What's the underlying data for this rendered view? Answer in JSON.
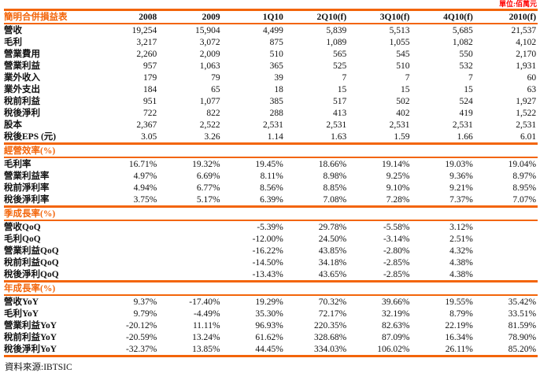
{
  "unit_label": "單位:佰萬元",
  "source_note": "資料來源:IBTSIC",
  "colors": {
    "accent_orange": "#F3650A",
    "unit_red": "#FF0000",
    "text": "#111111"
  },
  "table": {
    "title": "簡明合併損益表",
    "columns": [
      "2008",
      "2009",
      "1Q10",
      "2Q10(f)",
      "3Q10(f)",
      "4Q10(f)",
      "2010(f)"
    ],
    "sections": [
      {
        "rows": [
          {
            "label": "營收",
            "values": [
              "19,254",
              "15,904",
              "4,499",
              "5,839",
              "5,513",
              "5,685",
              "21,537"
            ]
          },
          {
            "label": "毛利",
            "values": [
              "3,217",
              "3,072",
              "875",
              "1,089",
              "1,055",
              "1,082",
              "4,102"
            ]
          },
          {
            "label": "營業費用",
            "values": [
              "2,260",
              "2,009",
              "510",
              "565",
              "545",
              "550",
              "2,170"
            ]
          },
          {
            "label": "營業利益",
            "values": [
              "957",
              "1,063",
              "365",
              "525",
              "510",
              "532",
              "1,931"
            ]
          },
          {
            "label": "業外收入",
            "values": [
              "179",
              "79",
              "39",
              "7",
              "7",
              "7",
              "60"
            ]
          },
          {
            "label": "業外支出",
            "values": [
              "184",
              "65",
              "18",
              "15",
              "15",
              "15",
              "63"
            ]
          },
          {
            "label": "稅前利益",
            "values": [
              "951",
              "1,077",
              "385",
              "517",
              "502",
              "524",
              "1,927"
            ]
          },
          {
            "label": "稅後淨利",
            "values": [
              "722",
              "822",
              "288",
              "413",
              "402",
              "419",
              "1,522"
            ]
          },
          {
            "label": "股本",
            "values": [
              "2,367",
              "2,522",
              "2,531",
              "2,531",
              "2,531",
              "2,531",
              "2,531"
            ]
          },
          {
            "label": "稅後EPS (元)",
            "values": [
              "3.05",
              "3.26",
              "1.14",
              "1.63",
              "1.59",
              "1.66",
              "6.01"
            ]
          }
        ]
      },
      {
        "header": "經營效率(%)",
        "rows": [
          {
            "label": "毛利率",
            "values": [
              "16.71%",
              "19.32%",
              "19.45%",
              "18.66%",
              "19.14%",
              "19.03%",
              "19.04%"
            ]
          },
          {
            "label": "營業利益率",
            "values": [
              "4.97%",
              "6.69%",
              "8.11%",
              "8.98%",
              "9.25%",
              "9.36%",
              "8.97%"
            ]
          },
          {
            "label": "稅前淨利率",
            "values": [
              "4.94%",
              "6.77%",
              "8.56%",
              "8.85%",
              "9.10%",
              "9.21%",
              "8.95%"
            ]
          },
          {
            "label": "稅後淨利率",
            "values": [
              "3.75%",
              "5.17%",
              "6.39%",
              "7.08%",
              "7.28%",
              "7.37%",
              "7.07%"
            ]
          }
        ]
      },
      {
        "header": "季成長率(%)",
        "rows": [
          {
            "label": "營收QoQ",
            "values": [
              "",
              "",
              "-5.39%",
              "29.78%",
              "-5.58%",
              "3.12%",
              ""
            ]
          },
          {
            "label": "毛利QoQ",
            "values": [
              "",
              "",
              "-12.00%",
              "24.50%",
              "-3.14%",
              "2.51%",
              ""
            ]
          },
          {
            "label": "營業利益QoQ",
            "values": [
              "",
              "",
              "-16.22%",
              "43.85%",
              "-2.80%",
              "4.32%",
              ""
            ]
          },
          {
            "label": "稅前利益QoQ",
            "values": [
              "",
              "",
              "-14.50%",
              "34.18%",
              "-2.85%",
              "4.38%",
              ""
            ]
          },
          {
            "label": "稅後淨利QoQ",
            "values": [
              "",
              "",
              "-13.43%",
              "43.65%",
              "-2.85%",
              "4.38%",
              ""
            ]
          }
        ]
      },
      {
        "header": "年成長率(%)",
        "rows": [
          {
            "label": "營收YoY",
            "values": [
              "9.37%",
              "-17.40%",
              "19.29%",
              "70.32%",
              "39.66%",
              "19.55%",
              "35.42%"
            ]
          },
          {
            "label": "毛利YoY",
            "values": [
              "9.79%",
              "-4.49%",
              "35.30%",
              "72.17%",
              "32.19%",
              "8.79%",
              "33.51%"
            ]
          },
          {
            "label": "營業利益YoY",
            "values": [
              "-20.12%",
              "11.11%",
              "96.93%",
              "220.35%",
              "82.63%",
              "22.19%",
              "81.59%"
            ]
          },
          {
            "label": "稅前利益YoY",
            "values": [
              "-20.59%",
              "13.24%",
              "61.62%",
              "328.68%",
              "87.09%",
              "16.34%",
              "78.90%"
            ]
          },
          {
            "label": "稅後淨利YoY",
            "values": [
              "-32.37%",
              "13.85%",
              "44.45%",
              "334.03%",
              "106.02%",
              "26.11%",
              "85.20%"
            ]
          }
        ]
      }
    ]
  }
}
